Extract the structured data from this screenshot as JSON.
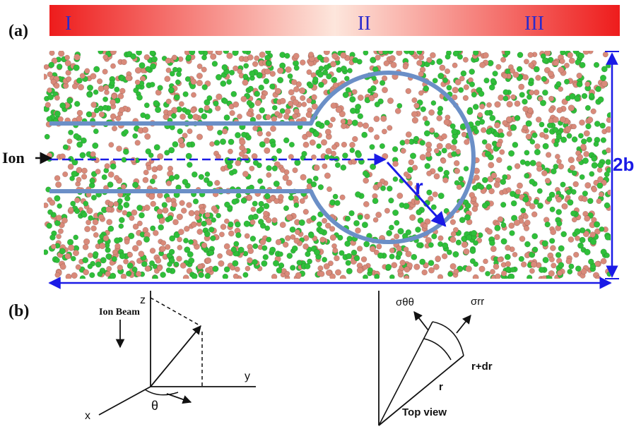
{
  "panel_a": {
    "label": "(a)",
    "regions": [
      "I",
      "II",
      "III"
    ],
    "ion_label": "Ion",
    "radius_label": "r",
    "thickness_label": "2b"
  },
  "panel_b": {
    "label": "(b)",
    "ion_beam_label": "Ion Beam",
    "axis_z": "z",
    "axis_y": "y",
    "axis_x": "x",
    "angle_label": "θ",
    "sigma_thetatheta": "σθθ",
    "sigma_rr": "σrr",
    "r_plus_dr": "r+dr",
    "r_label": "r",
    "top_view_label": "Top view"
  },
  "colors": {
    "atom_green": "#2fbf3a",
    "atom_pink": "#d98a7a",
    "channel_outline": "#6b8fc7",
    "dimension_blue": "#1a1ae6",
    "gradient_red": "#ee1c1c",
    "gradient_light": "#fde6dc",
    "region_label": "#2a2acc"
  }
}
